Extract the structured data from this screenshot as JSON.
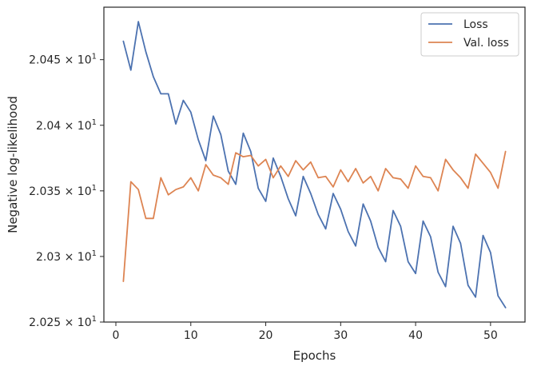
{
  "chart_data": {
    "type": "line",
    "xlabel": "Epochs",
    "ylabel": "Negative log-likelihood",
    "xlim": [
      -1.6,
      54.6
    ],
    "ylim": [
      20.25,
      20.49
    ],
    "xticks": [
      0,
      10,
      20,
      30,
      40,
      50
    ],
    "xtick_labels": [
      "0",
      "10",
      "20",
      "30",
      "40",
      "50"
    ],
    "yticks": [
      20.25,
      20.3,
      20.35,
      20.4,
      20.45
    ],
    "ytick_labels": [
      {
        "mantissa": "2.025",
        "exp": "1"
      },
      {
        "mantissa": "2.03",
        "exp": "1"
      },
      {
        "mantissa": "2.035",
        "exp": "1"
      },
      {
        "mantissa": "2.04",
        "exp": "1"
      },
      {
        "mantissa": "2.045",
        "exp": "1"
      }
    ],
    "legend_position": "top-right",
    "x": [
      1,
      2,
      3,
      4,
      5,
      6,
      7,
      8,
      9,
      10,
      11,
      12,
      13,
      14,
      15,
      16,
      17,
      18,
      19,
      20,
      21,
      22,
      23,
      24,
      25,
      26,
      27,
      28,
      29,
      30,
      31,
      32,
      33,
      34,
      35,
      36,
      37,
      38,
      39,
      40,
      41,
      42,
      43,
      44,
      45,
      46,
      47,
      48,
      49,
      50,
      51,
      52
    ],
    "series": [
      {
        "name": "Loss",
        "color": "#4c72b0",
        "values": [
          20.464,
          20.442,
          20.479,
          20.456,
          20.437,
          20.424,
          20.424,
          20.401,
          20.419,
          20.41,
          20.389,
          20.373,
          20.407,
          20.393,
          20.365,
          20.355,
          20.394,
          20.38,
          20.352,
          20.342,
          20.375,
          20.361,
          20.344,
          20.331,
          20.361,
          20.348,
          20.332,
          20.321,
          20.348,
          20.336,
          20.319,
          20.308,
          20.34,
          20.327,
          20.307,
          20.296,
          20.335,
          20.323,
          20.296,
          20.287,
          20.327,
          20.315,
          20.288,
          20.277,
          20.323,
          20.31,
          20.278,
          20.269,
          20.316,
          20.303,
          20.27,
          20.261
        ]
      },
      {
        "name": "Val. loss",
        "color": "#dd8452",
        "values": [
          20.281,
          20.357,
          20.351,
          20.329,
          20.329,
          20.36,
          20.347,
          20.351,
          20.353,
          20.36,
          20.35,
          20.37,
          20.362,
          20.36,
          20.355,
          20.379,
          20.376,
          20.377,
          20.369,
          20.374,
          20.36,
          20.369,
          20.361,
          20.373,
          20.366,
          20.372,
          20.36,
          20.361,
          20.353,
          20.366,
          20.357,
          20.367,
          20.356,
          20.361,
          20.35,
          20.367,
          20.36,
          20.359,
          20.352,
          20.369,
          20.361,
          20.36,
          20.35,
          20.374,
          20.366,
          20.36,
          20.352,
          20.378,
          20.371,
          20.364,
          20.352,
          20.38
        ]
      }
    ]
  }
}
